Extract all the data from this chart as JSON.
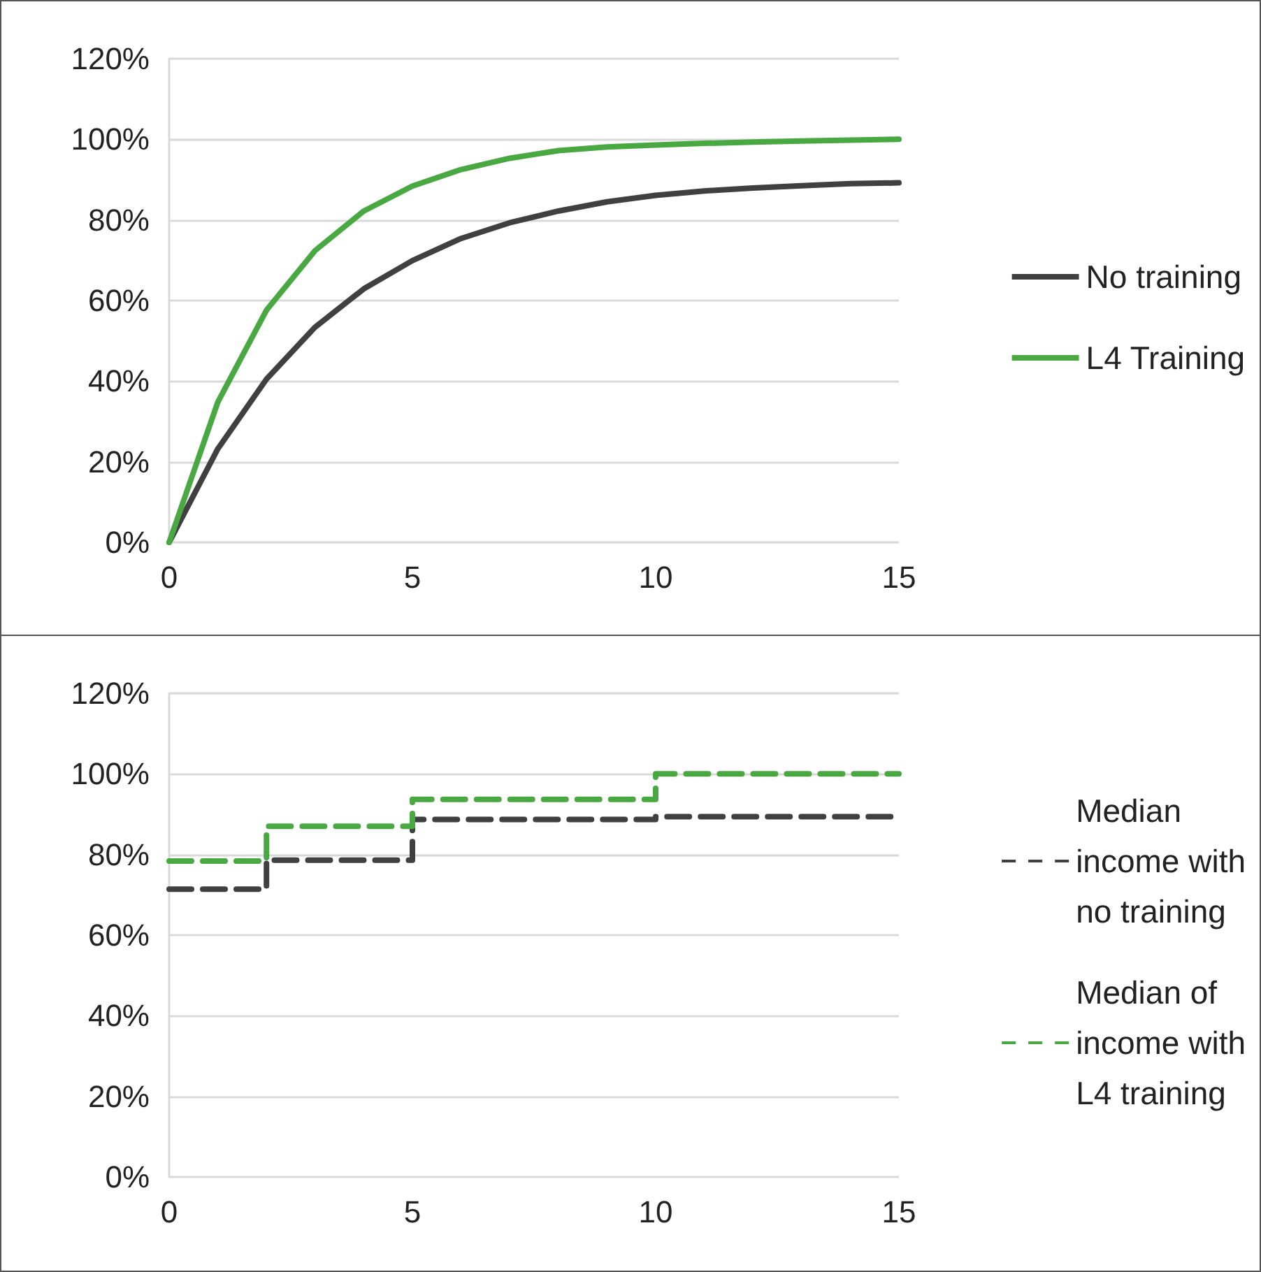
{
  "chart_data": [
    {
      "type": "line",
      "x": [
        0,
        1,
        2,
        3,
        4,
        5,
        6,
        7,
        8,
        9,
        10,
        11,
        12,
        13,
        14,
        15
      ],
      "series": [
        {
          "name": "No training",
          "color": "#404040",
          "values": [
            0,
            23.2,
            40.5,
            53.4,
            62.9,
            69.9,
            75.4,
            79.3,
            82.2,
            84.5,
            86.1,
            87.2,
            87.9,
            88.5,
            89.0,
            89.2
          ]
        },
        {
          "name": "L4 Training",
          "color": "#4aa842",
          "values": [
            0,
            34.8,
            57.6,
            72.4,
            82.2,
            88.4,
            92.5,
            95.3,
            97.2,
            98.1,
            98.6,
            99.0,
            99.3,
            99.6,
            99.8,
            100
          ]
        }
      ],
      "xlim": [
        0,
        15
      ],
      "xticks": [
        0,
        5,
        10,
        15
      ],
      "ylim": [
        0,
        120
      ],
      "yticks": [
        {
          "value": 0,
          "label": "0%"
        },
        {
          "value": 20,
          "label": "20%"
        },
        {
          "value": 40,
          "label": "40%"
        },
        {
          "value": 60,
          "label": "60%"
        },
        {
          "value": 80,
          "label": "80%"
        },
        {
          "value": 100,
          "label": "100%"
        },
        {
          "value": 120,
          "label": "120%"
        }
      ],
      "grid": "y",
      "legend": "right",
      "marker": "none",
      "line_style": "solid"
    },
    {
      "type": "step",
      "x": [
        0,
        2,
        5,
        10,
        15
      ],
      "series": [
        {
          "name": "Median\nincome with\nno training",
          "color": "#404040",
          "values": [
            71.4,
            78.6,
            88.7,
            89.4,
            89.4
          ]
        },
        {
          "name": "Median of\nincome with\nL4 training",
          "color": "#4aa842",
          "values": [
            78.4,
            87.0,
            93.7,
            100,
            100
          ]
        }
      ],
      "xlim": [
        0,
        15
      ],
      "xticks": [
        0,
        5,
        10,
        15
      ],
      "ylim": [
        0,
        120
      ],
      "yticks": [
        {
          "value": 0,
          "label": "0%"
        },
        {
          "value": 20,
          "label": "20%"
        },
        {
          "value": 40,
          "label": "40%"
        },
        {
          "value": 60,
          "label": "60%"
        },
        {
          "value": 80,
          "label": "80%"
        },
        {
          "value": 100,
          "label": "100%"
        },
        {
          "value": 120,
          "label": "120%"
        }
      ],
      "grid": "y",
      "legend": "right",
      "marker": "none",
      "line_style": "dashed"
    }
  ]
}
